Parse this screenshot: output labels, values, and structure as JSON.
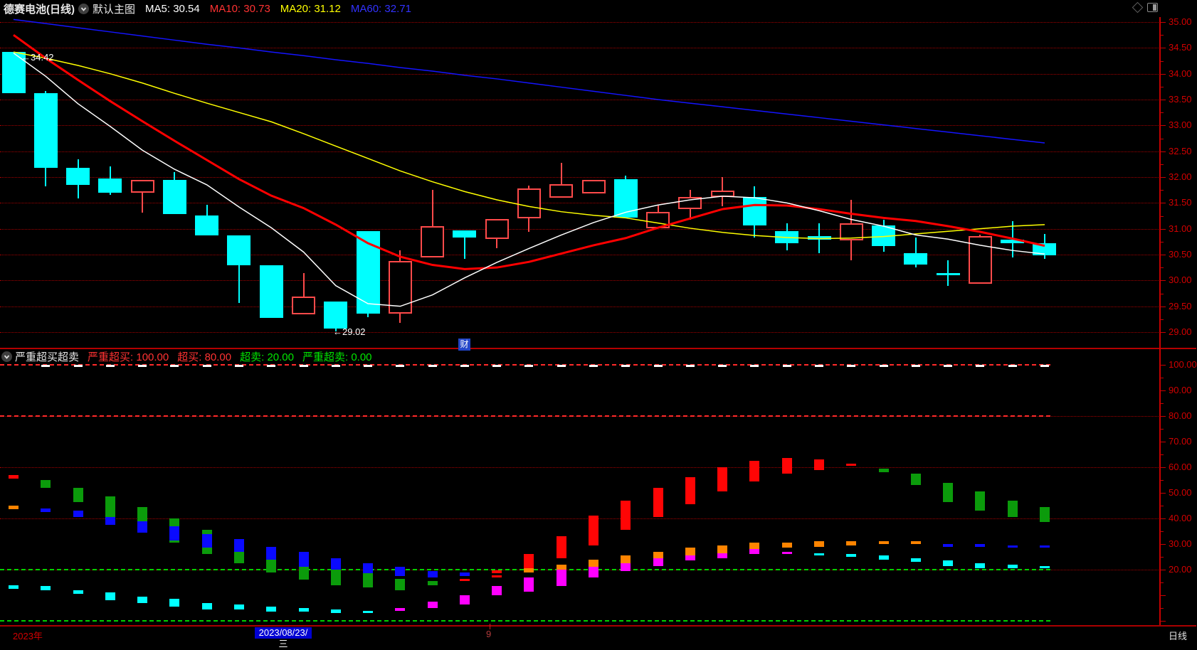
{
  "header": {
    "title": "德赛电池(日线)",
    "main_overlay_label": "默认主图",
    "ma_legend": [
      {
        "text": "MA5: 30.54",
        "color": "#ffffff"
      },
      {
        "text": "MA10: 30.73",
        "color": "#ff3232"
      },
      {
        "text": "MA20: 31.12",
        "color": "#ffff00"
      },
      {
        "text": "MA60: 32.71",
        "color": "#3232ff"
      }
    ]
  },
  "indicator_header": {
    "title": "严重超买超卖",
    "params": [
      {
        "text": "严重超买: 100.00",
        "color": "#ff3232"
      },
      {
        "text": "超买: 80.00",
        "color": "#ff3232"
      },
      {
        "text": "超卖: 20.00",
        "color": "#00e600"
      },
      {
        "text": "严重超卖: 0.00",
        "color": "#00e600"
      }
    ]
  },
  "axes": {
    "price_labels": [
      "35.00",
      "34.50",
      "34.00",
      "33.50",
      "33.00",
      "32.50",
      "32.00",
      "31.50",
      "31.00",
      "30.50",
      "30.00",
      "29.50",
      "29.00"
    ],
    "osc_labels": [
      "100.00",
      "90.00",
      "80.00",
      "70.00",
      "60.00",
      "50.00",
      "40.00",
      "30.00",
      "20.00"
    ],
    "label_color": "#d20000",
    "axis_color": "#c80000"
  },
  "annotations": {
    "high_label": "←34.42",
    "low_label": "←29.02",
    "event_badge": "财"
  },
  "bottom_bar": {
    "year_label": "2023年",
    "year_color": "#d20000",
    "date_chip": "2023/08/23/三",
    "month_marker": "9",
    "period_label": "日线"
  },
  "chart_data": {
    "type": "candlestick+oscillator",
    "title": "德赛电池 日线",
    "price_axis": {
      "min": 29.0,
      "max": 35.0,
      "tick_step": 0.5
    },
    "colors": {
      "up": "#ff4a4a",
      "down": "#00ffff",
      "ma5": "#ffffff",
      "ma10": "#ff0000",
      "ma20": "#ffff00",
      "ma60": "#1414ff",
      "white": "#ffffff",
      "green": "#0b9b0b",
      "blue": "#0a0aff",
      "cyan": "#00ffff",
      "magenta": "#ff00ff",
      "red": "#ff0505",
      "orange": "#ff8400"
    },
    "candles_format": [
      "dir(u=up,d=down)",
      "high",
      "body_top",
      "body_bottom",
      "low"
    ],
    "candles": [
      [
        "d",
        34.42,
        34.42,
        33.62,
        33.62
      ],
      [
        "d",
        33.66,
        33.62,
        32.18,
        31.82
      ],
      [
        "d",
        32.34,
        32.18,
        31.85,
        31.59
      ],
      [
        "d",
        32.21,
        31.97,
        31.7,
        31.66
      ],
      [
        "u",
        31.94,
        31.94,
        31.7,
        31.31
      ],
      [
        "d",
        32.1,
        31.94,
        31.28,
        31.28
      ],
      [
        "d",
        31.47,
        31.26,
        30.87,
        30.87
      ],
      [
        "d",
        30.87,
        30.87,
        30.3,
        29.57
      ],
      [
        "d",
        30.29,
        30.29,
        29.27,
        29.27
      ],
      [
        "u",
        30.14,
        29.69,
        29.35,
        29.35
      ],
      [
        "d",
        29.59,
        29.59,
        29.07,
        29.02
      ],
      [
        "d",
        30.95,
        30.95,
        29.36,
        29.29
      ],
      [
        "u",
        30.58,
        30.38,
        29.36,
        29.18
      ],
      [
        "u",
        31.75,
        31.05,
        30.44,
        30.44
      ],
      [
        "d",
        30.97,
        30.97,
        30.83,
        30.42
      ],
      [
        "u",
        31.19,
        31.19,
        30.8,
        30.62
      ],
      [
        "u",
        31.84,
        31.78,
        31.2,
        30.94
      ],
      [
        "u",
        32.28,
        31.86,
        31.6,
        31.6
      ],
      [
        "u",
        31.94,
        31.94,
        31.68,
        31.68
      ],
      [
        "d",
        32.03,
        31.96,
        31.22,
        31.22
      ],
      [
        "u",
        31.45,
        31.33,
        31.01,
        31.01
      ],
      [
        "u",
        31.75,
        31.62,
        31.38,
        31.17
      ],
      [
        "u",
        32.0,
        31.74,
        31.62,
        31.43
      ],
      [
        "d",
        31.82,
        31.62,
        31.06,
        30.83
      ],
      [
        "d",
        31.1,
        30.96,
        30.72,
        30.58
      ],
      [
        "d",
        31.11,
        30.86,
        30.79,
        30.53
      ],
      [
        "u",
        31.56,
        31.11,
        30.77,
        30.39
      ],
      [
        "d",
        31.17,
        31.06,
        30.66,
        30.56
      ],
      [
        "d",
        30.83,
        30.53,
        30.31,
        30.25
      ],
      [
        "d",
        30.39,
        30.14,
        30.1,
        29.9
      ],
      [
        "u",
        30.89,
        30.86,
        29.94,
        29.94
      ],
      [
        "d",
        31.15,
        30.79,
        30.72,
        30.45
      ],
      [
        "d",
        30.9,
        30.72,
        30.49,
        30.42
      ]
    ],
    "ma_series": [
      {
        "name": "MA5",
        "key": "ma5",
        "values": [
          34.4,
          33.95,
          33.42,
          32.98,
          32.52,
          32.15,
          31.85,
          31.42,
          31.02,
          30.55,
          29.9,
          29.55,
          29.5,
          29.72,
          30.05,
          30.35,
          30.62,
          30.88,
          31.12,
          31.32,
          31.46,
          31.56,
          31.63,
          31.6,
          31.5,
          31.35,
          31.18,
          31.05,
          30.88,
          30.8,
          30.68,
          30.58,
          30.51
        ]
      },
      {
        "name": "MA10",
        "key": "ma10",
        "values": [
          34.75,
          34.3,
          33.88,
          33.47,
          33.08,
          32.7,
          32.33,
          31.96,
          31.64,
          31.4,
          31.08,
          30.72,
          30.46,
          30.3,
          30.22,
          30.25,
          30.36,
          30.52,
          30.68,
          30.82,
          31.02,
          31.2,
          31.38,
          31.46,
          31.45,
          31.38,
          31.29,
          31.21,
          31.15,
          31.05,
          30.94,
          30.81,
          30.67
        ]
      },
      {
        "name": "MA20",
        "key": "ma20",
        "values": [
          34.42,
          34.3,
          34.16,
          34.0,
          33.82,
          33.62,
          33.43,
          33.25,
          33.07,
          32.84,
          32.6,
          32.36,
          32.12,
          31.91,
          31.72,
          31.56,
          31.43,
          31.33,
          31.26,
          31.21,
          31.11,
          31.01,
          30.93,
          30.87,
          30.83,
          30.81,
          30.82,
          30.85,
          30.9,
          30.95,
          31.0,
          31.05,
          31.08
        ]
      },
      {
        "name": "MA60",
        "key": "ma60",
        "values": [
          35.05,
          34.97,
          34.89,
          34.81,
          34.73,
          34.65,
          34.57,
          34.5,
          34.42,
          34.35,
          34.27,
          34.2,
          34.12,
          34.05,
          33.97,
          33.9,
          33.82,
          33.74,
          33.66,
          33.58,
          33.5,
          33.43,
          33.36,
          33.29,
          33.22,
          33.15,
          33.08,
          33.01,
          32.94,
          32.87,
          32.8,
          32.73,
          32.66
        ]
      }
    ],
    "oscillator": {
      "range": [
        0,
        100
      ],
      "thresholds": {
        "severe_overbought": 100,
        "overbought": 80,
        "oversold": 20,
        "severe_oversold": 0
      },
      "dotted_gridlines": [
        80,
        60,
        40,
        20
      ],
      "dashed_red_lines": [
        100,
        80
      ],
      "dashed_green_lines": [
        20,
        0
      ],
      "bars_format": [
        "color",
        "value_top",
        "value_bottom"
      ],
      "days": [
        [
          [
            "red",
            57,
            55.5
          ],
          [
            "orange",
            45,
            43.5
          ],
          [
            "cyan",
            14,
            12.5
          ]
        ],
        [
          [
            "white",
            100,
            99.3
          ],
          [
            "green",
            55,
            52
          ],
          [
            "blue",
            44,
            42.5
          ],
          [
            "cyan",
            13.5,
            12
          ]
        ],
        [
          [
            "white",
            100,
            99.3
          ],
          [
            "green",
            52,
            46.5
          ],
          [
            "blue",
            43,
            40.5
          ],
          [
            "cyan",
            12,
            10.5
          ]
        ],
        [
          [
            "white",
            100,
            99.3
          ],
          [
            "green",
            48.5,
            40.5
          ],
          [
            "blue",
            40.5,
            37.5
          ],
          [
            "cyan",
            11,
            8
          ]
        ],
        [
          [
            "white",
            100,
            99.3
          ],
          [
            "green",
            44.5,
            39
          ],
          [
            "blue",
            39,
            34.5
          ],
          [
            "cyan",
            9.5,
            7
          ]
        ],
        [
          [
            "white",
            100,
            99.3
          ],
          [
            "green",
            40,
            36.5
          ],
          [
            "blue",
            37,
            31.5
          ],
          [
            "green",
            31.5,
            30.5
          ],
          [
            "cyan",
            8.5,
            5.5
          ]
        ],
        [
          [
            "white",
            100,
            99.3
          ],
          [
            "green",
            35.5,
            34
          ],
          [
            "blue",
            34,
            28.5
          ],
          [
            "green",
            28.5,
            26
          ],
          [
            "cyan",
            7,
            4.5
          ]
        ],
        [
          [
            "white",
            100,
            99.3
          ],
          [
            "blue",
            32,
            26
          ],
          [
            "green",
            27,
            22.5
          ],
          [
            "cyan",
            6.5,
            4.5
          ]
        ],
        [
          [
            "white",
            100,
            99.3
          ],
          [
            "blue",
            29,
            23.5
          ],
          [
            "green",
            24,
            19
          ],
          [
            "cyan",
            5.5,
            3.5
          ]
        ],
        [
          [
            "white",
            100,
            99.3
          ],
          [
            "blue",
            27,
            21
          ],
          [
            "green",
            21,
            16
          ],
          [
            "cyan",
            5,
            3.5
          ]
        ],
        [
          [
            "white",
            100,
            99.3
          ],
          [
            "blue",
            24.5,
            19.5
          ],
          [
            "green",
            20,
            14
          ],
          [
            "cyan",
            4.5,
            3
          ]
        ],
        [
          [
            "white",
            100,
            99.3
          ],
          [
            "blue",
            22.5,
            18
          ],
          [
            "green",
            18.5,
            13
          ],
          [
            "cyan",
            4,
            3
          ]
        ],
        [
          [
            "white",
            100,
            99.3
          ],
          [
            "blue",
            21,
            17.5
          ],
          [
            "green",
            16.5,
            12
          ],
          [
            "magenta",
            5,
            4
          ]
        ],
        [
          [
            "white",
            100,
            99.3
          ],
          [
            "blue",
            19.5,
            17
          ],
          [
            "green",
            15.5,
            14
          ],
          [
            "magenta",
            7.5,
            5
          ]
        ],
        [
          [
            "white",
            100,
            99.3
          ],
          [
            "blue",
            19,
            17.5
          ],
          [
            "red",
            16.5,
            16
          ],
          [
            "magenta",
            10,
            6.5
          ]
        ],
        [
          [
            "white",
            100,
            99.3
          ],
          [
            "red",
            19.7,
            18.6
          ],
          [
            "red",
            17.8,
            17.2
          ],
          [
            "magenta",
            13.5,
            10
          ]
        ],
        [
          [
            "white",
            100,
            99.3
          ],
          [
            "red",
            26,
            20.5
          ],
          [
            "orange",
            20.5,
            19
          ],
          [
            "magenta",
            17,
            11.5
          ]
        ],
        [
          [
            "white",
            100,
            99.3
          ],
          [
            "red",
            33,
            24.5
          ],
          [
            "orange",
            22,
            20
          ],
          [
            "magenta",
            20,
            13.5
          ]
        ],
        [
          [
            "white",
            100,
            99.3
          ],
          [
            "red",
            41,
            29.5
          ],
          [
            "orange",
            24,
            21
          ],
          [
            "magenta",
            21,
            17
          ]
        ],
        [
          [
            "white",
            100,
            99.3
          ],
          [
            "red",
            47,
            35.5
          ],
          [
            "orange",
            25.5,
            22.5
          ],
          [
            "magenta",
            22.5,
            19.5
          ]
        ],
        [
          [
            "white",
            100,
            99.3
          ],
          [
            "red",
            52,
            40.5
          ],
          [
            "orange",
            27,
            24.5
          ],
          [
            "magenta",
            24.5,
            21.5
          ]
        ],
        [
          [
            "white",
            100,
            99.3
          ],
          [
            "red",
            56,
            45.5
          ],
          [
            "orange",
            28.5,
            25.5
          ],
          [
            "magenta",
            25.5,
            23.5
          ]
        ],
        [
          [
            "white",
            100,
            99.3
          ],
          [
            "red",
            60,
            50.5
          ],
          [
            "orange",
            29.5,
            26.5
          ],
          [
            "magenta",
            26.5,
            24.5
          ]
        ],
        [
          [
            "white",
            100,
            99.3
          ],
          [
            "red",
            62.5,
            54.5
          ],
          [
            "orange",
            30.5,
            28
          ],
          [
            "magenta",
            28,
            26
          ]
        ],
        [
          [
            "white",
            100,
            99.3
          ],
          [
            "red",
            63.5,
            57.5
          ],
          [
            "orange",
            30.5,
            28.5
          ],
          [
            "magenta",
            27,
            26
          ]
        ],
        [
          [
            "white",
            100,
            99.3
          ],
          [
            "red",
            63,
            59
          ],
          [
            "orange",
            31,
            29
          ],
          [
            "cyan",
            26.5,
            25.5
          ]
        ],
        [
          [
            "white",
            100,
            99.3
          ],
          [
            "red",
            61.5,
            60.5
          ],
          [
            "orange",
            31,
            29.5
          ],
          [
            "cyan",
            26,
            25
          ]
        ],
        [
          [
            "white",
            100,
            99.3
          ],
          [
            "green",
            59.5,
            58
          ],
          [
            "orange",
            31,
            30
          ],
          [
            "cyan",
            25.5,
            24
          ]
        ],
        [
          [
            "white",
            100,
            99.3
          ],
          [
            "green",
            57.5,
            53
          ],
          [
            "orange",
            31,
            30
          ],
          [
            "cyan",
            24.5,
            23
          ]
        ],
        [
          [
            "white",
            100,
            99.3
          ],
          [
            "green",
            54,
            46.5
          ],
          [
            "blue",
            30,
            29
          ],
          [
            "cyan",
            23.5,
            21.5
          ]
        ],
        [
          [
            "white",
            100,
            99.3
          ],
          [
            "green",
            50.5,
            43
          ],
          [
            "blue",
            30,
            29
          ],
          [
            "cyan",
            22.5,
            20.5
          ]
        ],
        [
          [
            "white",
            100,
            99.3
          ],
          [
            "green",
            47,
            40.5
          ],
          [
            "blue",
            29.5,
            28.5
          ],
          [
            "cyan",
            22,
            20.5
          ]
        ],
        [
          [
            "white",
            100,
            99.3
          ],
          [
            "green",
            44.5,
            38.5
          ],
          [
            "blue",
            29.5,
            28.5
          ],
          [
            "cyan",
            21.5,
            20.5
          ]
        ]
      ]
    }
  }
}
